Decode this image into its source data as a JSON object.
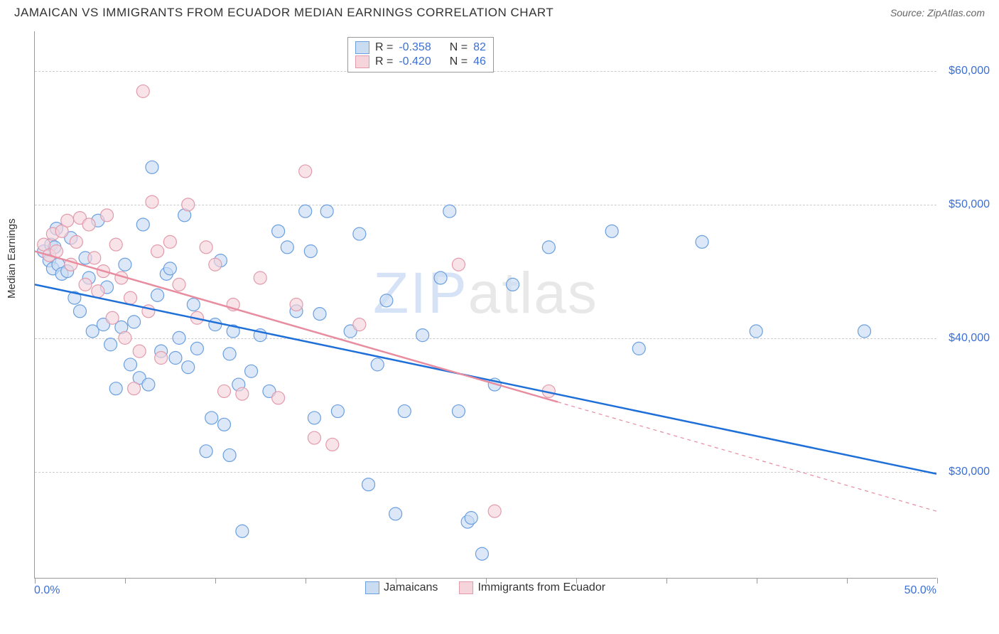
{
  "title": "JAMAICAN VS IMMIGRANTS FROM ECUADOR MEDIAN EARNINGS CORRELATION CHART",
  "source": "Source: ZipAtlas.com",
  "ylabel": "Median Earnings",
  "watermark_z": "ZIP",
  "watermark_rest": "atlas",
  "chart": {
    "type": "scatter",
    "xlim": [
      0,
      50
    ],
    "ylim": [
      22000,
      63000
    ],
    "x_tick_positions": [
      0,
      5,
      10,
      15,
      20,
      25,
      30,
      35,
      40,
      45,
      50
    ],
    "x_start_label": "0.0%",
    "x_end_label": "50.0%",
    "y_gridlines": [
      30000,
      40000,
      50000,
      60000
    ],
    "y_tick_labels": [
      "$30,000",
      "$40,000",
      "$50,000",
      "$60,000"
    ],
    "grid_color": "#cccccc",
    "axis_color": "#999999",
    "background_color": "#ffffff",
    "point_radius": 9,
    "series": [
      {
        "name": "Jamaicans",
        "fill_color": "#cadcf2",
        "stroke_color": "#6a9fe0",
        "fill_opacity": 0.65,
        "R": "-0.358",
        "N": "82",
        "regression": {
          "x1": 0,
          "y1": 44000,
          "x2": 50,
          "y2": 29800,
          "color": "#1e6fd8",
          "width": 2.5,
          "solid_until_x": 50
        },
        "points": [
          [
            0.5,
            46500
          ],
          [
            0.8,
            45800
          ],
          [
            0.9,
            47000
          ],
          [
            1.0,
            45200
          ],
          [
            1.1,
            46800
          ],
          [
            1.2,
            48200
          ],
          [
            1.3,
            45500
          ],
          [
            1.5,
            44800
          ],
          [
            1.8,
            45000
          ],
          [
            2.0,
            47500
          ],
          [
            2.2,
            43000
          ],
          [
            2.5,
            42000
          ],
          [
            2.8,
            46000
          ],
          [
            3.0,
            44500
          ],
          [
            3.2,
            40500
          ],
          [
            3.5,
            48800
          ],
          [
            3.8,
            41000
          ],
          [
            4.0,
            43800
          ],
          [
            4.2,
            39500
          ],
          [
            4.5,
            36200
          ],
          [
            4.8,
            40800
          ],
          [
            5.0,
            45500
          ],
          [
            5.3,
            38000
          ],
          [
            5.5,
            41200
          ],
          [
            5.8,
            37000
          ],
          [
            6.0,
            48500
          ],
          [
            6.3,
            36500
          ],
          [
            6.5,
            52800
          ],
          [
            6.8,
            43200
          ],
          [
            7.0,
            39000
          ],
          [
            7.3,
            44800
          ],
          [
            7.5,
            45200
          ],
          [
            7.8,
            38500
          ],
          [
            8.0,
            40000
          ],
          [
            8.3,
            49200
          ],
          [
            8.5,
            37800
          ],
          [
            8.8,
            42500
          ],
          [
            9.0,
            39200
          ],
          [
            9.5,
            31500
          ],
          [
            9.8,
            34000
          ],
          [
            10.0,
            41000
          ],
          [
            10.3,
            45800
          ],
          [
            10.5,
            33500
          ],
          [
            10.8,
            38800
          ],
          [
            11.0,
            40500
          ],
          [
            11.3,
            36500
          ],
          [
            11.5,
            25500
          ],
          [
            12.0,
            37500
          ],
          [
            12.5,
            40200
          ],
          [
            13.0,
            36000
          ],
          [
            13.5,
            48000
          ],
          [
            14.0,
            46800
          ],
          [
            14.5,
            42000
          ],
          [
            15.0,
            49500
          ],
          [
            15.3,
            46500
          ],
          [
            15.5,
            34000
          ],
          [
            15.8,
            41800
          ],
          [
            16.2,
            49500
          ],
          [
            16.8,
            34500
          ],
          [
            17.5,
            40500
          ],
          [
            18.0,
            47800
          ],
          [
            18.5,
            29000
          ],
          [
            19.0,
            38000
          ],
          [
            19.5,
            42800
          ],
          [
            20.0,
            26800
          ],
          [
            20.5,
            34500
          ],
          [
            21.5,
            40200
          ],
          [
            22.5,
            44500
          ],
          [
            23.0,
            49500
          ],
          [
            23.5,
            34500
          ],
          [
            24.0,
            26200
          ],
          [
            24.2,
            26500
          ],
          [
            24.8,
            23800
          ],
          [
            25.5,
            36500
          ],
          [
            26.5,
            44000
          ],
          [
            28.5,
            46800
          ],
          [
            32.0,
            48000
          ],
          [
            33.5,
            39200
          ],
          [
            37.0,
            47200
          ],
          [
            40.0,
            40500
          ],
          [
            46.0,
            40500
          ],
          [
            10.8,
            31200
          ]
        ]
      },
      {
        "name": "Immigrants from Ecuador",
        "fill_color": "#f5d4dc",
        "stroke_color": "#e29bab",
        "fill_opacity": 0.65,
        "R": "-0.420",
        "N": "46",
        "regression": {
          "x1": 0,
          "y1": 46500,
          "x2": 50,
          "y2": 27000,
          "color": "#e88ca0",
          "width": 2.5,
          "solid_until_x": 29
        },
        "points": [
          [
            0.5,
            47000
          ],
          [
            0.8,
            46200
          ],
          [
            1.0,
            47800
          ],
          [
            1.2,
            46500
          ],
          [
            1.5,
            48000
          ],
          [
            1.8,
            48800
          ],
          [
            2.0,
            45500
          ],
          [
            2.3,
            47200
          ],
          [
            2.5,
            49000
          ],
          [
            2.8,
            44000
          ],
          [
            3.0,
            48500
          ],
          [
            3.3,
            46000
          ],
          [
            3.5,
            43500
          ],
          [
            3.8,
            45000
          ],
          [
            4.0,
            49200
          ],
          [
            4.3,
            41500
          ],
          [
            4.5,
            47000
          ],
          [
            4.8,
            44500
          ],
          [
            5.0,
            40000
          ],
          [
            5.3,
            43000
          ],
          [
            5.5,
            36200
          ],
          [
            5.8,
            39000
          ],
          [
            6.0,
            58500
          ],
          [
            6.3,
            42000
          ],
          [
            6.5,
            50200
          ],
          [
            6.8,
            46500
          ],
          [
            7.0,
            38500
          ],
          [
            7.5,
            47200
          ],
          [
            8.0,
            44000
          ],
          [
            8.5,
            50000
          ],
          [
            9.0,
            41500
          ],
          [
            9.5,
            46800
          ],
          [
            10.0,
            45500
          ],
          [
            10.5,
            36000
          ],
          [
            11.0,
            42500
          ],
          [
            11.5,
            35800
          ],
          [
            12.5,
            44500
          ],
          [
            13.5,
            35500
          ],
          [
            14.5,
            42500
          ],
          [
            15.0,
            52500
          ],
          [
            15.5,
            32500
          ],
          [
            16.5,
            32000
          ],
          [
            18.0,
            41000
          ],
          [
            23.5,
            45500
          ],
          [
            25.5,
            27000
          ],
          [
            28.5,
            36000
          ]
        ]
      }
    ]
  },
  "legend_top": [
    {
      "swatch_fill": "#cadcf2",
      "swatch_stroke": "#6a9fe0",
      "r_label": "R =",
      "r_val": "-0.358",
      "n_label": "N =",
      "n_val": "82"
    },
    {
      "swatch_fill": "#f5d4dc",
      "swatch_stroke": "#e29bab",
      "r_label": "R =",
      "r_val": "-0.420",
      "n_label": "N =",
      "n_val": "46"
    }
  ],
  "legend_bottom": [
    {
      "swatch_fill": "#cadcf2",
      "swatch_stroke": "#6a9fe0",
      "label": "Jamaicans"
    },
    {
      "swatch_fill": "#f5d4dc",
      "swatch_stroke": "#e29bab",
      "label": "Immigrants from Ecuador"
    }
  ]
}
